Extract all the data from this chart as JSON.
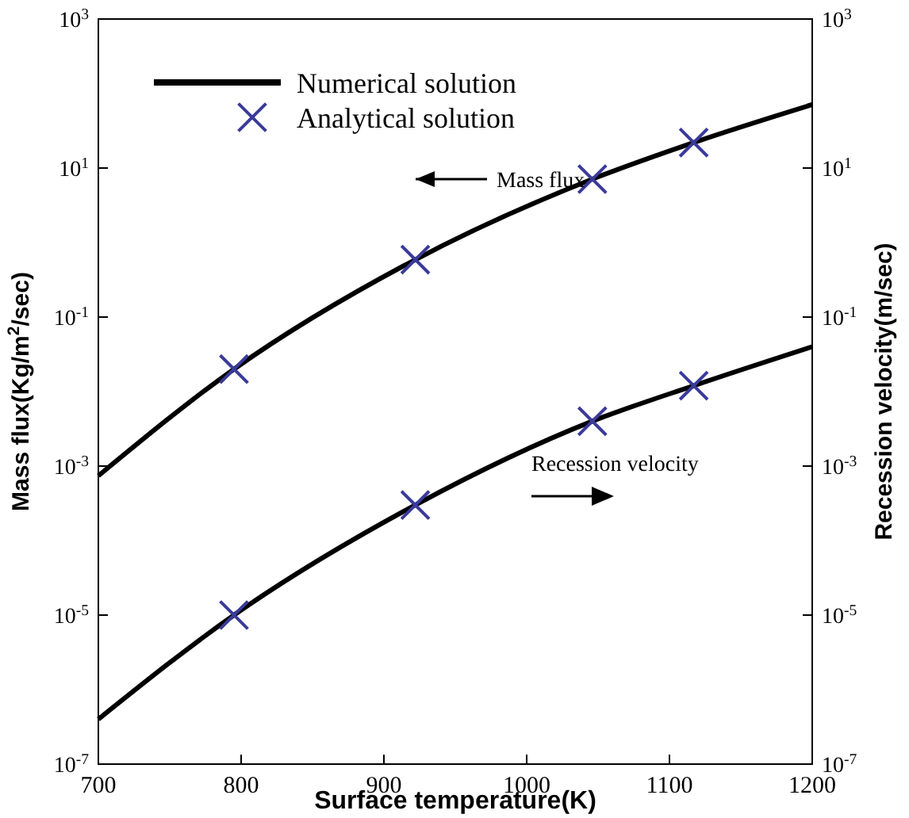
{
  "chart_data": {
    "type": "line",
    "xlabel": "Surface temperature(K)",
    "ylabel": "Mass flux(Kg/m$^{2}$/sec)",
    "y2label": "Recession velocity(m/sec)",
    "xlim": [
      700,
      1200
    ],
    "xticks": [
      700,
      800,
      900,
      1000,
      1100,
      1200
    ],
    "ylim": [
      1e-07,
      1000
    ],
    "yticks": [
      {
        "value": 1e-07,
        "label": "10$^{-7}$"
      },
      {
        "value": 1e-05,
        "label": "10$^{-5}$"
      },
      {
        "value": 0.001,
        "label": "10$^{-3}$"
      },
      {
        "value": 0.1,
        "label": "10$^{-1}$"
      },
      {
        "value": 10,
        "label": "10$^{1}$"
      },
      {
        "value": 1000,
        "label": "10$^{3}$"
      }
    ],
    "log": "y",
    "grid": false,
    "legend": "top left",
    "series": [
      {
        "name": "Numerical solution",
        "type": "line",
        "color": "#000000",
        "marker": "none",
        "x": [
          700,
          795,
          922,
          1046,
          1117,
          1200
        ],
        "values": [
          0.00074,
          0.02,
          0.59,
          7.1,
          22,
          71
        ]
      },
      {
        "type": "line",
        "color": "#000000",
        "marker": "none",
        "x": [
          700,
          795,
          922,
          1046,
          1117,
          1200
        ],
        "values": [
          4e-07,
          1e-05,
          0.0003,
          0.004,
          0.012,
          0.04
        ]
      },
      {
        "name": "Analytical solution",
        "type": "scatter",
        "color": "#3a3a9a",
        "marker": "cross",
        "x": [
          795,
          922,
          1046,
          1117
        ],
        "values": [
          0.02,
          0.59,
          7.1,
          22
        ]
      },
      {
        "type": "scatter",
        "color": "#3a3a9a",
        "marker": "cross",
        "x": [
          795,
          922,
          1046,
          1117
        ],
        "values": [
          1e-05,
          0.0003,
          0.004,
          0.012
        ]
      }
    ],
    "annotations": [
      "Mass flux",
      "Recession velocity"
    ]
  }
}
